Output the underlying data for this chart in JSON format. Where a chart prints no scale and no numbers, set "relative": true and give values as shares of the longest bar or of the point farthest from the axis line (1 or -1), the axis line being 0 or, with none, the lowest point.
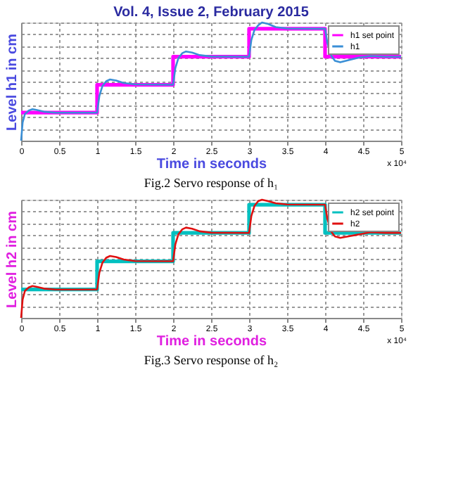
{
  "chart_data": [
    {
      "type": "line",
      "title": "Vol. 4, Issue 2, February 2015",
      "xlabel": "Time in seconds",
      "ylabel": "Level h1 in cm",
      "relative": true,
      "xlim": [
        0,
        5
      ],
      "xticks": [
        0,
        0.5,
        1,
        1.5,
        2,
        2.5,
        3,
        3.5,
        4,
        4.5,
        5
      ],
      "grid": true,
      "legend": "top right",
      "annotations": [
        "x 10⁴",
        "Fig.2 Servo response of h₁"
      ],
      "series": [
        {
          "name": "h1 set point",
          "type": "step",
          "color": "#ff00ff",
          "x": [
            0,
            1,
            2,
            3,
            4,
            5
          ],
          "values": [
            0.237,
            0.473,
            0.71,
            0.947,
            0.71,
            0.71
          ]
        },
        {
          "name": "h1",
          "type": "line",
          "color": "#3a8fd6",
          "x": [
            0,
            0.02,
            0.05,
            0.1,
            0.15,
            0.2,
            0.3,
            0.45,
            1.0,
            1.03,
            1.07,
            1.12,
            1.17,
            1.25,
            1.35,
            1.5,
            2.0,
            2.03,
            2.07,
            2.12,
            2.17,
            2.25,
            2.35,
            2.5,
            3.0,
            3.03,
            3.07,
            3.12,
            3.17,
            3.25,
            3.35,
            3.5,
            4.0,
            4.03,
            4.08,
            4.13,
            4.2,
            4.3,
            4.45,
            4.6,
            4.8,
            5.0
          ],
          "values": [
            0,
            0.154,
            0.225,
            0.254,
            0.266,
            0.26,
            0.245,
            0.237,
            0.237,
            0.379,
            0.462,
            0.503,
            0.518,
            0.509,
            0.488,
            0.476,
            0.473,
            0.615,
            0.698,
            0.74,
            0.755,
            0.746,
            0.724,
            0.712,
            0.71,
            0.852,
            0.935,
            0.976,
            1.0,
            0.988,
            0.961,
            0.949,
            0.947,
            0.828,
            0.722,
            0.675,
            0.663,
            0.68,
            0.704,
            0.716,
            0.71,
            0.71
          ]
        }
      ]
    },
    {
      "type": "line",
      "xlabel": "Time in seconds",
      "ylabel": "Level h2 in cm",
      "relative": true,
      "xlim": [
        0,
        5
      ],
      "xticks": [
        0,
        0.5,
        1,
        1.5,
        2,
        2.5,
        3,
        3.5,
        4,
        4.5,
        5
      ],
      "grid": true,
      "legend": "top right",
      "annotations": [
        "x 10⁴",
        "Fig.3 Servo response of h₂"
      ],
      "series": [
        {
          "name": "h2 set point",
          "type": "step",
          "color": "#00c0c0",
          "x": [
            0,
            1,
            2,
            3,
            4,
            5
          ],
          "values": [
            0.24,
            0.479,
            0.719,
            0.958,
            0.719,
            0.719
          ]
        },
        {
          "name": "h2",
          "type": "line",
          "color": "#e01010",
          "x": [
            0,
            0.02,
            0.05,
            0.1,
            0.15,
            0.2,
            0.3,
            0.45,
            1.0,
            1.03,
            1.07,
            1.12,
            1.17,
            1.25,
            1.35,
            1.5,
            2.0,
            2.03,
            2.07,
            2.12,
            2.17,
            2.25,
            2.35,
            2.5,
            3.0,
            3.03,
            3.07,
            3.12,
            3.17,
            3.25,
            3.35,
            3.5,
            4.0,
            4.03,
            4.08,
            4.13,
            4.2,
            4.3,
            4.45,
            4.6,
            4.8,
            5.0
          ],
          "values": [
            0,
            0.156,
            0.228,
            0.257,
            0.269,
            0.263,
            0.248,
            0.24,
            0.24,
            0.383,
            0.467,
            0.509,
            0.524,
            0.515,
            0.494,
            0.481,
            0.479,
            0.623,
            0.707,
            0.749,
            0.764,
            0.755,
            0.733,
            0.721,
            0.719,
            0.862,
            0.946,
            0.988,
            1.0,
            0.988,
            0.97,
            0.96,
            0.958,
            0.838,
            0.731,
            0.689,
            0.677,
            0.689,
            0.707,
            0.725,
            0.719,
            0.719
          ]
        }
      ]
    }
  ]
}
